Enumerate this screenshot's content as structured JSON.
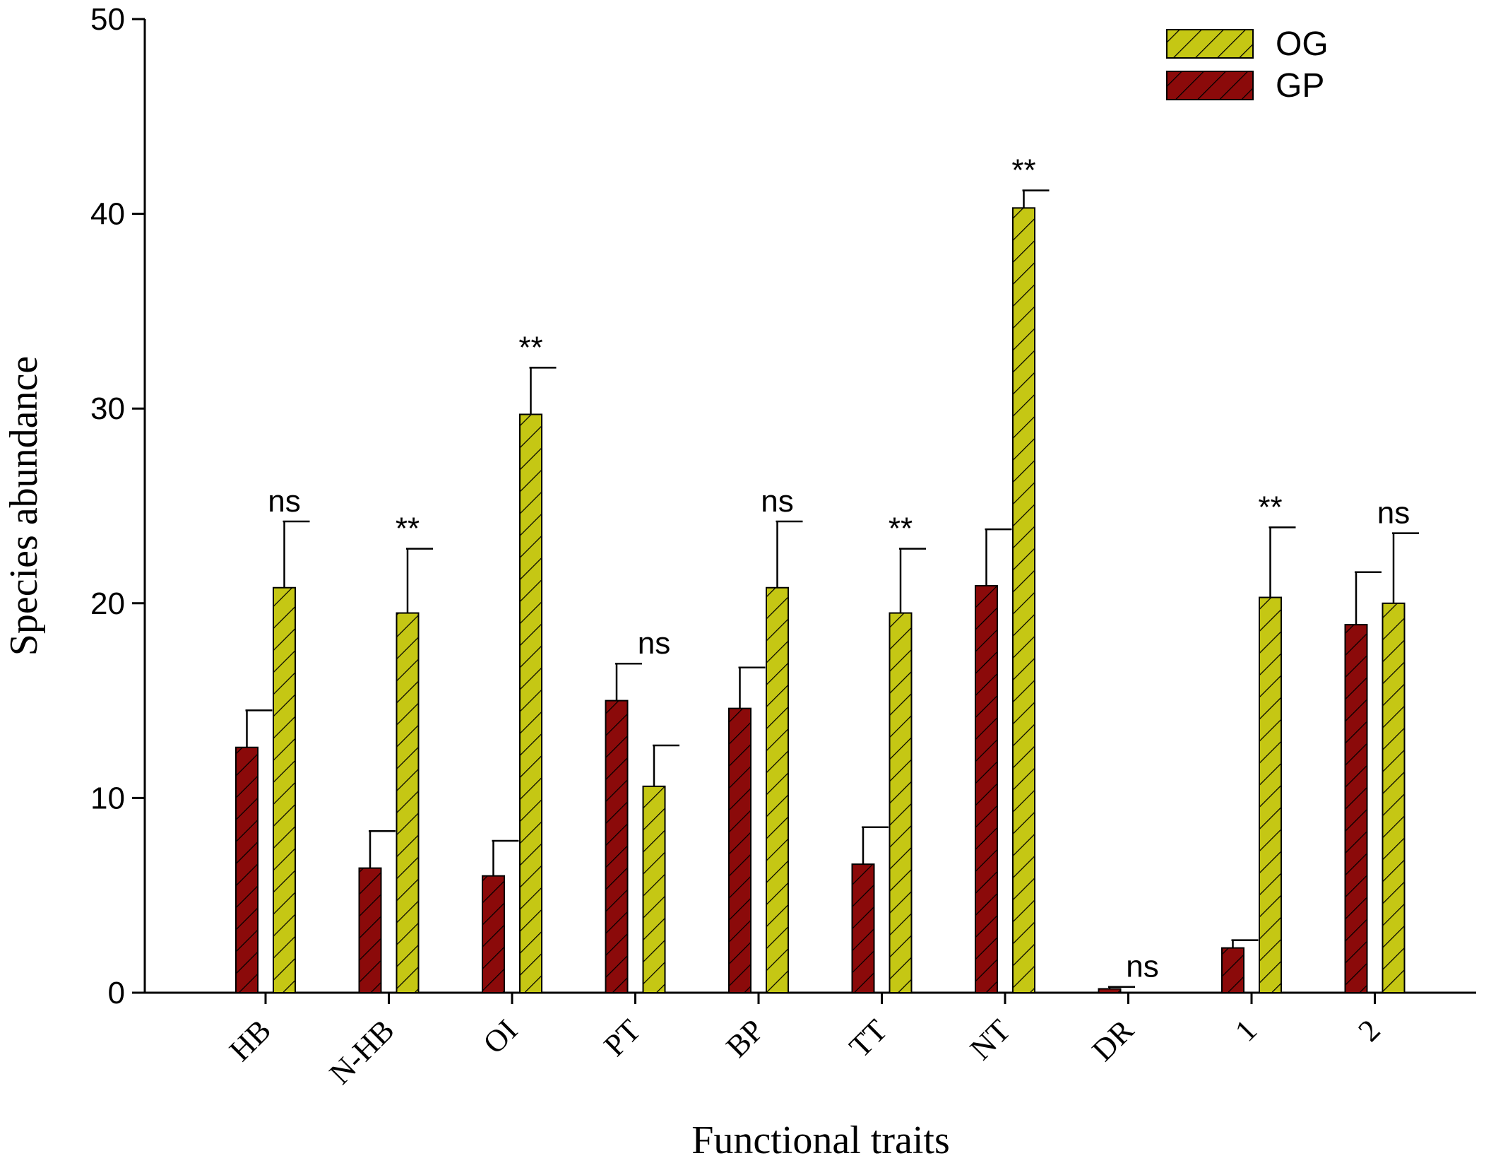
{
  "chart_data": {
    "type": "bar",
    "xlabel": "Functional traits",
    "ylabel": "Species abundance",
    "ylim": [
      0,
      50
    ],
    "yticks": [
      0,
      10,
      20,
      30,
      40,
      50
    ],
    "yticks_labels": [
      "0",
      "10",
      "20",
      "30",
      "40",
      "50"
    ],
    "grid": false,
    "legend_position": "top-right",
    "categories": [
      "HB",
      "N-HB",
      "OI",
      "PT",
      "BP",
      "TT",
      "NT",
      "DR",
      "1",
      "2"
    ],
    "series": [
      {
        "name": "GP",
        "color": "#8b0a0a",
        "values": [
          12.6,
          6.4,
          6.0,
          15.0,
          14.6,
          6.6,
          20.9,
          0.2,
          2.3,
          18.9
        ],
        "errors": [
          1.9,
          1.9,
          1.8,
          1.9,
          2.1,
          1.9,
          2.9,
          0.1,
          0.4,
          2.7
        ]
      },
      {
        "name": "OG",
        "color": "#c5c714",
        "values": [
          20.8,
          19.5,
          29.7,
          10.6,
          20.8,
          19.5,
          40.3,
          0,
          20.3,
          20.0
        ],
        "errors": [
          3.4,
          3.3,
          2.4,
          2.1,
          3.4,
          3.3,
          0.9,
          0,
          3.6,
          3.6
        ]
      }
    ],
    "significance": [
      "ns",
      "**",
      "**",
      "ns",
      "ns",
      "**",
      "**",
      "ns",
      "**",
      "ns"
    ],
    "legend": [
      "OG",
      "GP"
    ]
  }
}
